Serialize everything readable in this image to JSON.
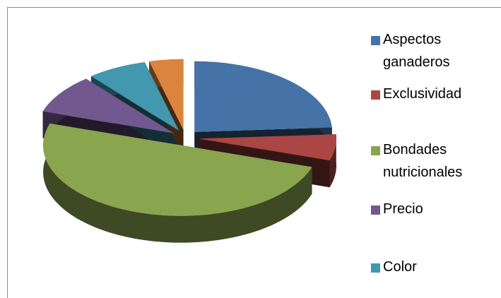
{
  "chart_data": {
    "type": "pie3d",
    "categories": [
      "Aspectos ganaderos",
      "Exclusividad",
      "Bondades nutricionales",
      "Precio",
      "Color",
      null
    ],
    "values": [
      24,
      6,
      50,
      9,
      7,
      4
    ],
    "colors": [
      "#4572a7",
      "#aa4643",
      "#89a54e",
      "#71588f",
      "#4198af",
      "#db843d"
    ],
    "legend": "right"
  }
}
